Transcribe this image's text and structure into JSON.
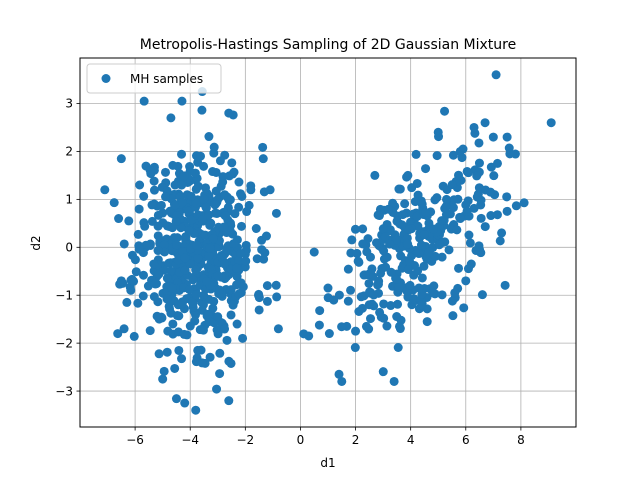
{
  "chart_data": {
    "type": "scatter",
    "title": "Metropolis-Hastings Sampling of 2D Gaussian Mixture",
    "xlabel": "d1",
    "ylabel": "d2",
    "xlim": [
      -8.0,
      10.0
    ],
    "ylim": [
      -3.75,
      3.95
    ],
    "xticks": [
      -6,
      -4,
      -2,
      0,
      2,
      4,
      6,
      8
    ],
    "yticks": [
      -3,
      -2,
      -1,
      0,
      1,
      2,
      3
    ],
    "xtick_labels": [
      "−6",
      "−4",
      "−2",
      "0",
      "2",
      "4",
      "6",
      "8"
    ],
    "ytick_labels": [
      "−3",
      "−2",
      "−1",
      "0",
      "1",
      "2",
      "3"
    ],
    "grid": true,
    "legend_position": "upper-left",
    "series": [
      {
        "name": "MH samples",
        "color": "#1f77b4",
        "clusters": [
          {
            "center": [
              -3.8,
              0.0
            ],
            "spread": [
              1.05,
              1.05
            ],
            "count": 560,
            "seed": 11
          },
          {
            "center": [
              4.0,
              0.0
            ],
            "spread": [
              1.45,
              0.9
            ],
            "correlation": 0.55,
            "count": 300,
            "seed": 29
          }
        ],
        "points": [
          [
            -7.1,
            1.2
          ],
          [
            -6.6,
            0.6
          ],
          [
            -6.5,
            1.85
          ],
          [
            -6.4,
            -1.7
          ],
          [
            -6.5,
            -0.7
          ],
          [
            -6.3,
            -1.15
          ],
          [
            -4.3,
            3.05
          ],
          [
            -4.2,
            -3.25
          ],
          [
            -3.8,
            -3.4
          ],
          [
            -2.6,
            -3.2
          ],
          [
            -5.0,
            -2.75
          ],
          [
            -2.6,
            2.8
          ],
          [
            -1.2,
            -0.8
          ],
          [
            -0.8,
            -1.7
          ],
          [
            -1.1,
            1.2
          ],
          [
            -1.8,
            1.2
          ],
          [
            -2.1,
            -1.9
          ],
          [
            0.3,
            -1.85
          ],
          [
            0.5,
            -0.1
          ],
          [
            1.0,
            -0.85
          ],
          [
            1.05,
            -1.8
          ],
          [
            1.4,
            -2.65
          ],
          [
            1.5,
            -2.8
          ],
          [
            2.0,
            -1.75
          ],
          [
            3.4,
            -2.8
          ],
          [
            2.7,
            1.5
          ],
          [
            3.9,
            1.5
          ],
          [
            5.0,
            2.4
          ],
          [
            5.9,
            2.05
          ],
          [
            6.3,
            2.5
          ],
          [
            6.7,
            2.6
          ],
          [
            7.1,
            3.6
          ],
          [
            9.1,
            2.6
          ],
          [
            7.5,
            2.3
          ],
          [
            7.6,
            1.95
          ],
          [
            7.3,
            0.3
          ],
          [
            7.5,
            0.75
          ],
          [
            6.9,
            1.15
          ],
          [
            6.5,
            -0.05
          ],
          [
            6.2,
            -0.35
          ],
          [
            6.0,
            -0.7
          ],
          [
            7.15,
            1.75
          ],
          [
            7.0,
            2.3
          ],
          [
            5.8,
            2.0
          ],
          [
            5.3,
            1.0
          ],
          [
            4.6,
            -1.55
          ],
          [
            4.4,
            -1.2
          ],
          [
            5.6,
            -0.95
          ],
          [
            5.8,
            0.6
          ],
          [
            4.8,
            -0.95
          ]
        ]
      }
    ]
  }
}
